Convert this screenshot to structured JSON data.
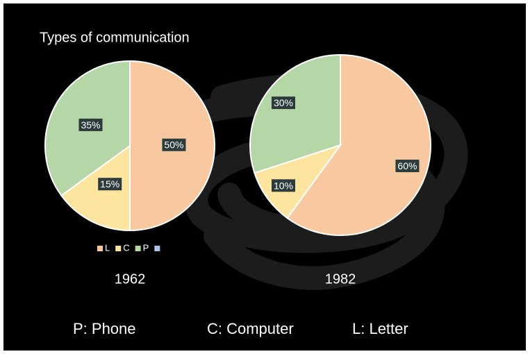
{
  "title": "Types of communication",
  "chart_data": [
    {
      "type": "pie",
      "caption": "1962",
      "categories": [
        "L",
        "C",
        "P",
        null
      ],
      "colors": [
        "#f8c9a0",
        "#fde5a0",
        "#b5d6a7",
        "#a9c4eb"
      ],
      "values": [
        50,
        15,
        35,
        null
      ],
      "value_labels": [
        "50%",
        "15%",
        "35%",
        null
      ],
      "legend": "bottom"
    },
    {
      "type": "pie",
      "caption": "1982",
      "categories": [
        "L",
        "C",
        "P"
      ],
      "colors": [
        "#f8c9a0",
        "#fde5a0",
        "#b5d6a7"
      ],
      "values": [
        60,
        10,
        30
      ],
      "value_labels": [
        "60%",
        "10%",
        "30%"
      ]
    }
  ],
  "footer": [
    "P: Phone",
    "C: Computer",
    "L: Letter"
  ]
}
